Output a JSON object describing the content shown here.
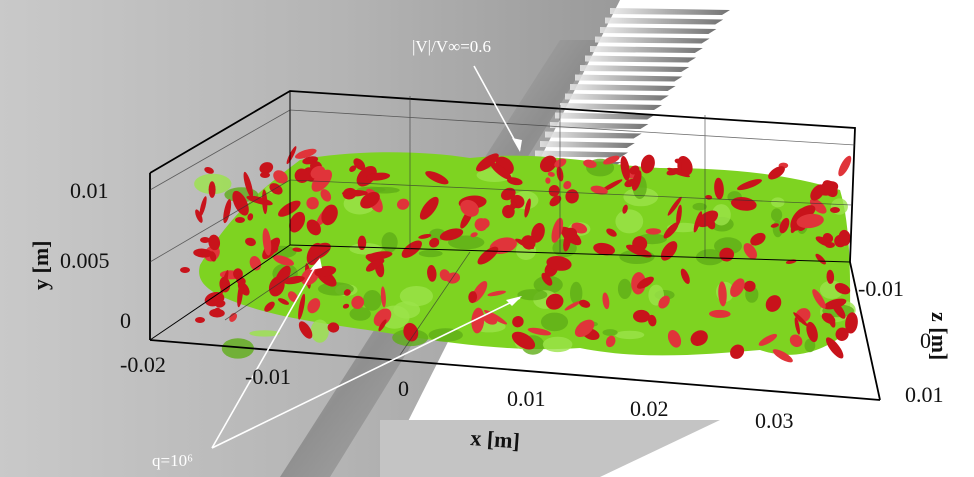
{
  "figure": {
    "annotations": {
      "velocity_iso": "|V|/V∞=0.6",
      "q_iso": "q=10⁶"
    },
    "axes": {
      "x": {
        "label": "x [m]",
        "ticks": [
          "-0.02",
          "-0.01",
          "0",
          "0.01",
          "0.02",
          "0.03"
        ]
      },
      "y": {
        "label": "y [m]",
        "ticks": [
          "0.01",
          "0.005",
          "0"
        ]
      },
      "z": {
        "label": "z [m]",
        "ticks": [
          "-0.01",
          "0",
          "0.01"
        ]
      }
    },
    "colors": {
      "velocity_iso": "#7ed321",
      "q_iso": "#c8131b",
      "wing_surface": "#b7b7b7",
      "box_frame": "#000000"
    }
  }
}
